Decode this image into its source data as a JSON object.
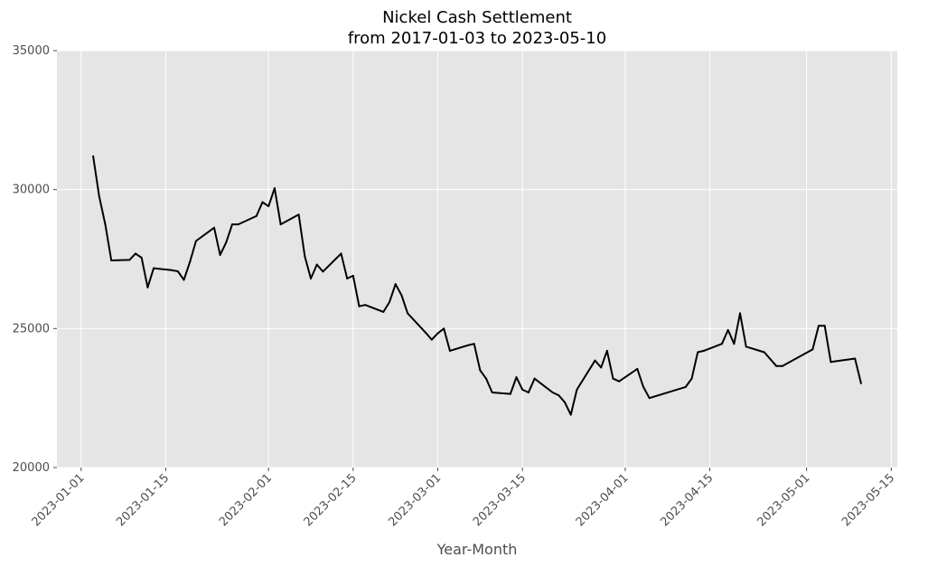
{
  "chart_data": {
    "type": "line",
    "title": "Nickel Cash Settlement",
    "subtitle": "from 2017-01-03 to 2023-05-10",
    "xlabel": "Year-Month",
    "ylabel": "",
    "xlim": [
      "2022-12-28",
      "2023-05-16"
    ],
    "ylim": [
      20000,
      35000
    ],
    "xticks": [
      "2023-01-01",
      "2023-01-15",
      "2023-02-01",
      "2023-02-15",
      "2023-03-01",
      "2023-03-15",
      "2023-04-01",
      "2023-04-15",
      "2023-05-01",
      "2023-05-15"
    ],
    "yticks": [
      20000,
      25000,
      30000,
      35000
    ],
    "grid": true,
    "legend": "none",
    "colors": {
      "line": "#000000",
      "plot_bg": "#e5e5e5",
      "grid": "#ffffff"
    },
    "series": [
      {
        "x": [
          "2023-01-03",
          "2023-01-04",
          "2023-01-05",
          "2023-01-06",
          "2023-01-09",
          "2023-01-10",
          "2023-01-11",
          "2023-01-12",
          "2023-01-13",
          "2023-01-16",
          "2023-01-17",
          "2023-01-18",
          "2023-01-19",
          "2023-01-20",
          "2023-01-23",
          "2023-01-24",
          "2023-01-25",
          "2023-01-26",
          "2023-01-27",
          "2023-01-30",
          "2023-01-31",
          "2023-02-01",
          "2023-02-02",
          "2023-02-03",
          "2023-02-06",
          "2023-02-07",
          "2023-02-08",
          "2023-02-09",
          "2023-02-10",
          "2023-02-13",
          "2023-02-14",
          "2023-02-15",
          "2023-02-16",
          "2023-02-17",
          "2023-02-20",
          "2023-02-21",
          "2023-02-22",
          "2023-02-23",
          "2023-02-24",
          "2023-02-27",
          "2023-02-28",
          "2023-03-01",
          "2023-03-02",
          "2023-03-03",
          "2023-03-06",
          "2023-03-07",
          "2023-03-08",
          "2023-03-09",
          "2023-03-10",
          "2023-03-13",
          "2023-03-14",
          "2023-03-15",
          "2023-03-16",
          "2023-03-17",
          "2023-03-20",
          "2023-03-21",
          "2023-03-22",
          "2023-03-23",
          "2023-03-24",
          "2023-03-27",
          "2023-03-28",
          "2023-03-29",
          "2023-03-30",
          "2023-03-31",
          "2023-04-03",
          "2023-04-04",
          "2023-04-05",
          "2023-04-11",
          "2023-04-12",
          "2023-04-13",
          "2023-04-14",
          "2023-04-17",
          "2023-04-18",
          "2023-04-19",
          "2023-04-20",
          "2023-04-21",
          "2023-04-24",
          "2023-04-25",
          "2023-04-26",
          "2023-04-27",
          "2023-05-02",
          "2023-05-03",
          "2023-05-04",
          "2023-05-05",
          "2023-05-09",
          "2023-05-10"
        ],
        "y": [
          31200,
          29750,
          28750,
          27450,
          27470,
          27700,
          27550,
          26480,
          27170,
          27100,
          27060,
          26750,
          27400,
          28150,
          28630,
          27650,
          28100,
          28750,
          28750,
          29050,
          29550,
          29400,
          30050,
          28750,
          29100,
          27600,
          26800,
          27300,
          27050,
          27700,
          26800,
          26900,
          25800,
          25850,
          25600,
          25950,
          26600,
          26200,
          25550,
          24850,
          24600,
          24830,
          25000,
          24200,
          24400,
          24450,
          23500,
          23200,
          22700,
          22650,
          23250,
          22800,
          22700,
          23200,
          22700,
          22600,
          22350,
          21900,
          22800,
          23850,
          23600,
          24200,
          23200,
          23100,
          23550,
          22900,
          22500,
          22900,
          23200,
          24150,
          24200,
          24450,
          24950,
          24450,
          25550,
          24350,
          24150,
          23900,
          23650,
          23650,
          24250,
          25100,
          25100,
          23800,
          23920,
          23030
        ]
      }
    ]
  }
}
